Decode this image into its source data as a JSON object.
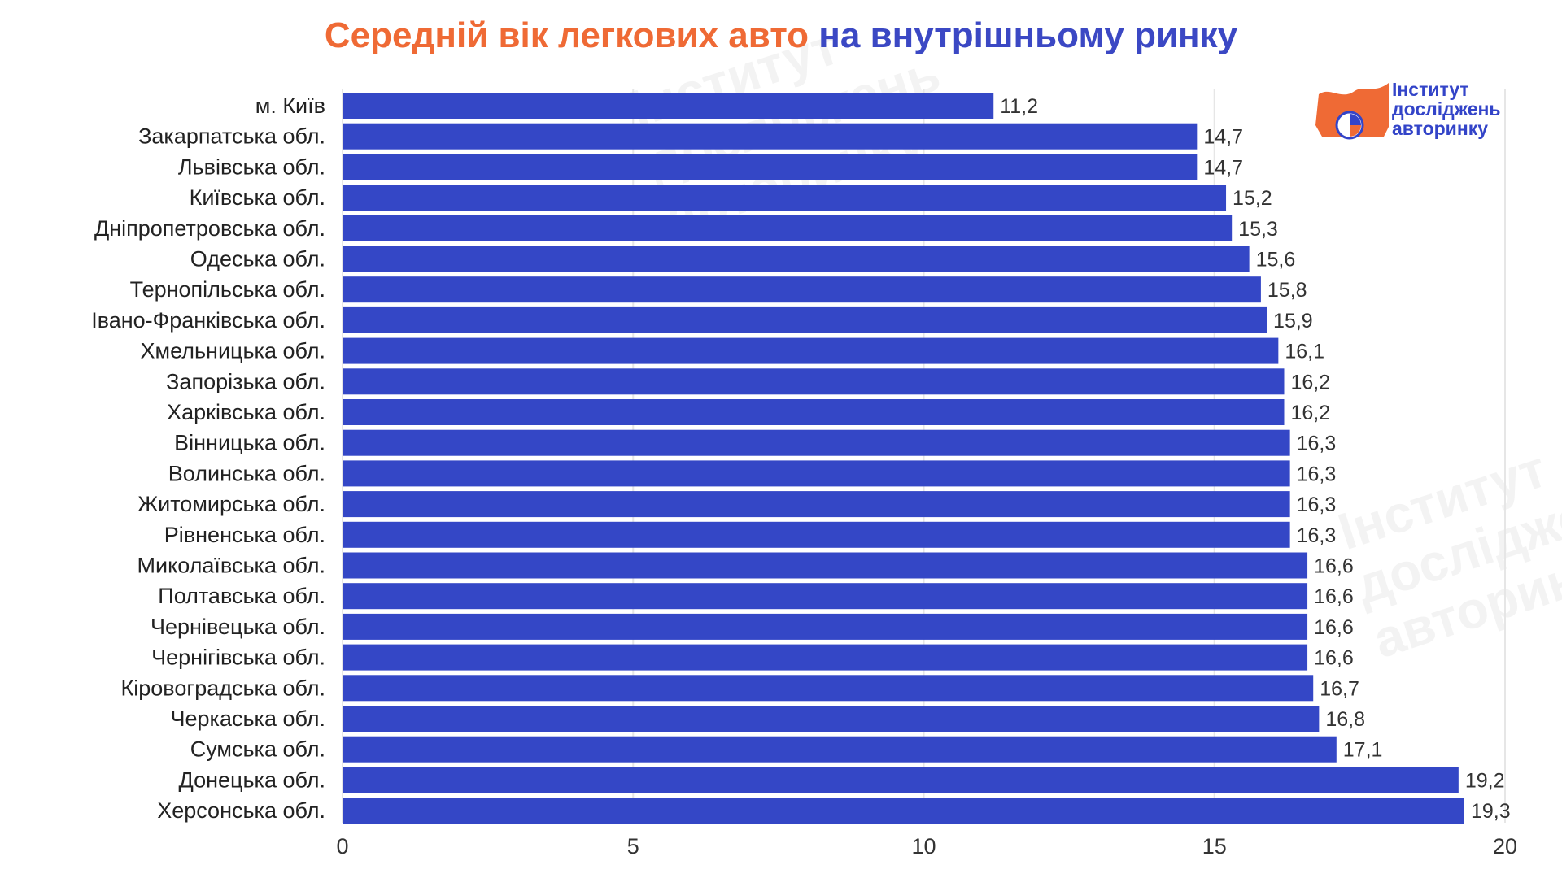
{
  "title": {
    "part1": "Середній вік легкових авто",
    "part2": "на внутрішньому ринку"
  },
  "logo": {
    "lines": [
      "Інститут",
      "досліджень",
      "авторинку"
    ],
    "brand_color": "#3344c8",
    "accent_color": "#ef6a35"
  },
  "colors": {
    "bar": "#3447c6",
    "title_orange": "#ef6a35",
    "title_blue": "#3b48c4",
    "grid": "#e6e6e6"
  },
  "chart_data": {
    "type": "bar",
    "orientation": "horizontal",
    "title": "Середній вік легкових авто на внутрішньому ринку",
    "xlabel": "",
    "ylabel": "",
    "xlim": [
      0,
      20
    ],
    "ticks": [
      "0",
      "5",
      "10",
      "15",
      "20"
    ],
    "grid": true,
    "legend": "none",
    "categories": [
      "м. Київ",
      "Закарпатська обл.",
      "Львівська обл.",
      "Київська обл.",
      "Дніпропетровська обл.",
      "Одеська обл.",
      "Тернопільська обл.",
      "Івано-Франківська обл.",
      "Хмельницька обл.",
      "Запорізька обл.",
      "Харківська обл.",
      "Вінницька обл.",
      "Волинська обл.",
      "Житомирська обл.",
      "Рівненська обл.",
      "Миколаївська обл.",
      "Полтавська обл.",
      "Чернівецька обл.",
      "Чернігівська обл.",
      "Кіровоградська обл.",
      "Черкаська обл.",
      "Сумська обл.",
      "Донецька обл.",
      "Херсонська обл."
    ],
    "values": [
      11.2,
      14.7,
      14.7,
      15.2,
      15.3,
      15.6,
      15.8,
      15.9,
      16.1,
      16.2,
      16.2,
      16.3,
      16.3,
      16.3,
      16.3,
      16.6,
      16.6,
      16.6,
      16.6,
      16.7,
      16.8,
      17.1,
      19.2,
      19.3
    ],
    "value_labels": [
      "11,2",
      "14,7",
      "14,7",
      "15,2",
      "15,3",
      "15,6",
      "15,8",
      "15,9",
      "16,1",
      "16,2",
      "16,2",
      "16,3",
      "16,3",
      "16,3",
      "16,3",
      "16,6",
      "16,6",
      "16,6",
      "16,6",
      "16,7",
      "16,8",
      "17,1",
      "19,2",
      "19,3"
    ]
  }
}
